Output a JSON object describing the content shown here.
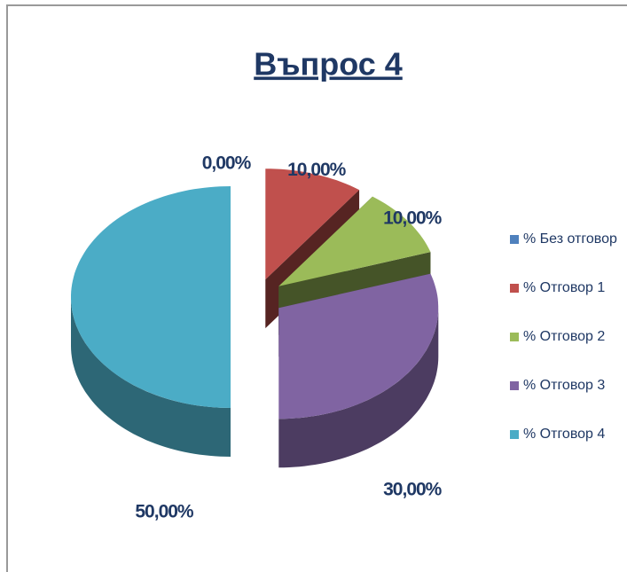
{
  "chart_data": {
    "type": "pie3d",
    "title": "Въпрос 4",
    "categories": [
      "% Без отговор",
      "% Отговор 1",
      "% Отговор 2",
      "% Отговор 3",
      "% Отговор 4"
    ],
    "values": [
      0,
      10,
      10,
      30,
      50
    ],
    "value_labels": [
      "0,00%",
      "10,00%",
      "10,00%",
      "30,00%",
      "50,00%"
    ],
    "colors": [
      "#4f81bd",
      "#c0504d",
      "#9bbb59",
      "#8064a2",
      "#4bacc6"
    ],
    "legend": "right"
  }
}
